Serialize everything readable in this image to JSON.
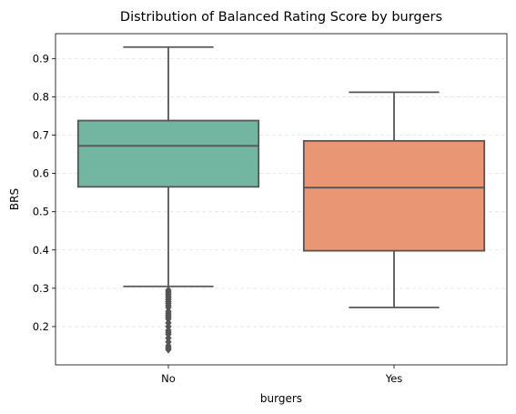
{
  "chart_data": {
    "type": "box",
    "title": "Distribution of Balanced Rating Score by burgers",
    "xlabel": "burgers",
    "ylabel": "BRS",
    "ylim": [
      0.1,
      0.965
    ],
    "yticks": [
      0.2,
      0.3,
      0.4,
      0.5,
      0.6,
      0.7,
      0.8,
      0.9
    ],
    "ytick_labels": [
      "0.2",
      "0.3",
      "0.4",
      "0.5",
      "0.6",
      "0.7",
      "0.8",
      "0.9"
    ],
    "grid": "horizontal dashed",
    "categories": [
      "No",
      "Yes"
    ],
    "boxes": [
      {
        "category": "No",
        "whisker_low": 0.305,
        "q1": 0.565,
        "median": 0.672,
        "q3": 0.738,
        "whisker_high": 0.93,
        "outliers": [
          0.295,
          0.29,
          0.285,
          0.28,
          0.275,
          0.27,
          0.265,
          0.26,
          0.255,
          0.25,
          0.24,
          0.235,
          0.23,
          0.225,
          0.22,
          0.21,
          0.2,
          0.19,
          0.185,
          0.18,
          0.17,
          0.16,
          0.15,
          0.145,
          0.14
        ]
      },
      {
        "category": "Yes",
        "whisker_low": 0.25,
        "q1": 0.398,
        "median": 0.563,
        "q3": 0.685,
        "whisker_high": 0.812,
        "outliers": []
      }
    ],
    "colors": {
      "No": "#72b6a1",
      "Yes": "#e99675",
      "line": "#555555",
      "grid": "#e3e3e3"
    }
  }
}
